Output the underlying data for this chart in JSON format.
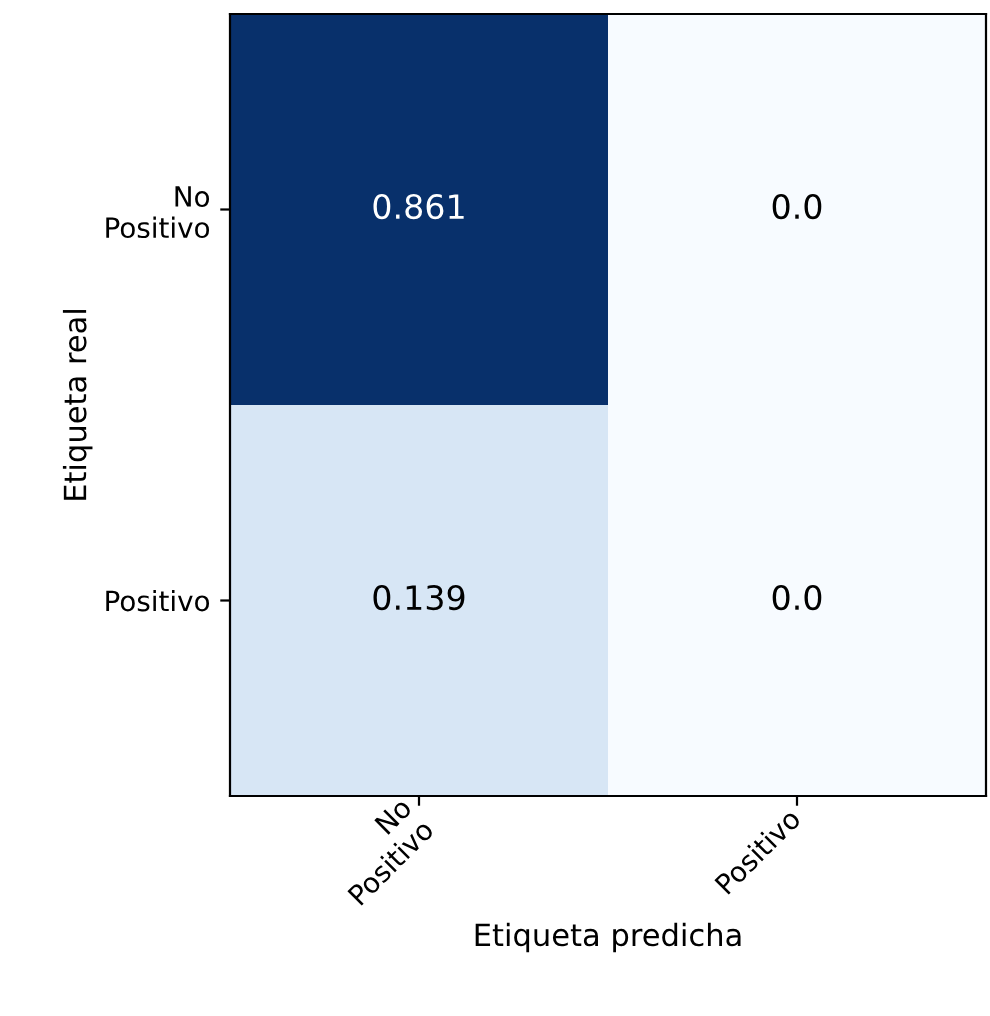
{
  "chart_data": {
    "type": "heatmap",
    "xlabel": "Etiqueta predicha",
    "ylabel": "Etiqueta real",
    "categories": [
      "No\nPositivo",
      "Positivo"
    ],
    "y_categories": [
      "No\nPositivo",
      "Positivo"
    ],
    "cells": [
      [
        0.861,
        0.0
      ],
      [
        0.139,
        0.0
      ]
    ],
    "cell_labels": [
      [
        "0.861",
        "0.0"
      ],
      [
        "0.139",
        "0.0"
      ]
    ]
  }
}
